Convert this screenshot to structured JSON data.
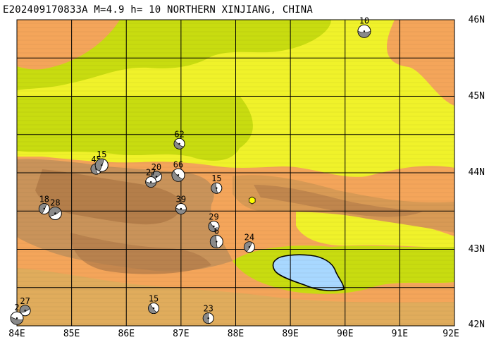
{
  "title": "E202409170833A M=4.9 h= 10 NORTHERN XINJIANG, CHINA",
  "map": {
    "lon_range": [
      84,
      92
    ],
    "lat_range": [
      42,
      46
    ],
    "lon_ticks": [
      "84E",
      "85E",
      "86E",
      "87E",
      "88E",
      "89E",
      "90E",
      "91E",
      "92E"
    ],
    "lat_ticks": [
      "46N",
      "45N",
      "44N",
      "43N",
      "42N"
    ],
    "colors": {
      "dark_orange": "#e0ac5c",
      "orange": "#f4a55a",
      "light_orange": "#f6be60",
      "yellow": "#f0f22a",
      "green": "#c8dc10",
      "brown": "#c9935a",
      "dark_brown": "#b07a48",
      "lake": "#a8d8ff",
      "epicenter": "#ffff00"
    },
    "epicenter": {
      "lon": 88.3,
      "lat": 43.64
    },
    "events": [
      {
        "id": "10",
        "lon": 90.35,
        "lat": 45.85
      },
      {
        "id": "62",
        "lon": 86.97,
        "lat": 44.38
      },
      {
        "id": "45",
        "lon": 85.45,
        "lat": 44.05
      },
      {
        "id": "15",
        "lon": 85.55,
        "lat": 44.1
      },
      {
        "id": "20",
        "lon": 86.55,
        "lat": 43.95
      },
      {
        "id": "27",
        "lon": 86.45,
        "lat": 43.88
      },
      {
        "id": "66",
        "lon": 86.95,
        "lat": 43.97
      },
      {
        "id": "15",
        "lon": 87.65,
        "lat": 43.8
      },
      {
        "id": "18",
        "lon": 84.5,
        "lat": 43.53
      },
      {
        "id": "28",
        "lon": 84.7,
        "lat": 43.47
      },
      {
        "id": "39",
        "lon": 87.0,
        "lat": 43.53
      },
      {
        "id": "29",
        "lon": 87.6,
        "lat": 43.3
      },
      {
        "id": "6",
        "lon": 87.65,
        "lat": 43.1
      },
      {
        "id": "24",
        "lon": 88.25,
        "lat": 43.03
      },
      {
        "id": "27",
        "lon": 84.15,
        "lat": 42.2
      },
      {
        "id": "2",
        "lon": 84.0,
        "lat": 42.1
      },
      {
        "id": "15",
        "lon": 86.5,
        "lat": 42.23
      },
      {
        "id": "23",
        "lon": 87.5,
        "lat": 42.1
      }
    ]
  }
}
